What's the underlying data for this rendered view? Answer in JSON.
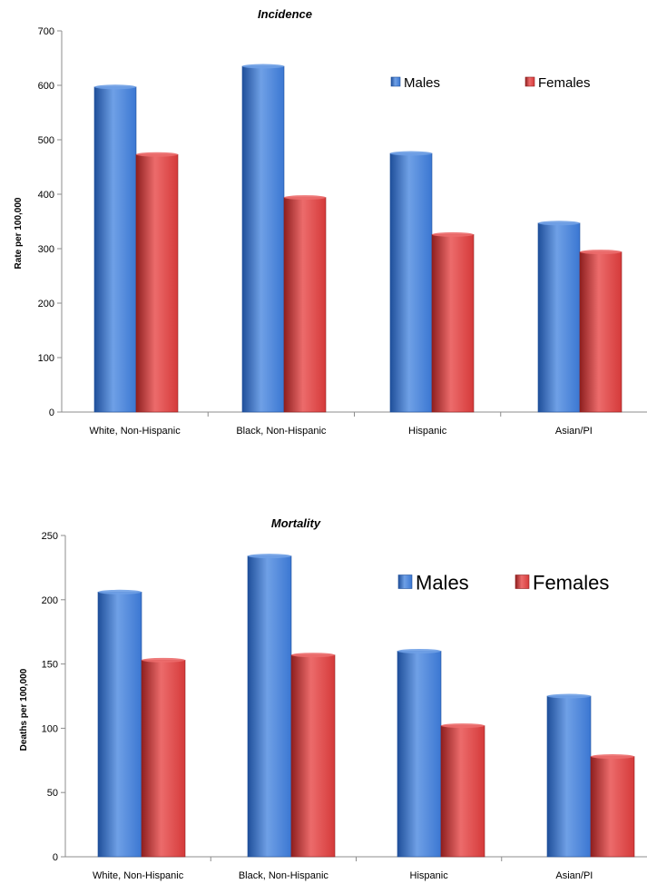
{
  "colors": {
    "males": "#3b77d2",
    "males_dark": "#1f4f9a",
    "males_light": "#6fa0e6",
    "females": "#d53a3a",
    "females_dark": "#8e1f1f",
    "females_light": "#ec6b6b"
  },
  "chart_data": [
    {
      "type": "bar",
      "title": "Incidence",
      "ylabel": "Rate per 100,000",
      "xlabel": "",
      "categories": [
        "White, Non-Hispanic",
        "Black, Non-Hispanic",
        "Hispanic",
        "Asian/PI"
      ],
      "series": [
        {
          "name": "Males",
          "values": [
            597,
            635,
            475,
            347
          ]
        },
        {
          "name": "Females",
          "values": [
            473,
            394,
            326,
            294
          ]
        }
      ],
      "ylim": [
        0,
        700
      ],
      "yticks": [
        0,
        100,
        200,
        300,
        400,
        500,
        600,
        700
      ],
      "grid": false,
      "legend": "top-right"
    },
    {
      "type": "bar",
      "title": "Mortality",
      "ylabel": "Deaths per 100,000",
      "xlabel": "",
      "categories": [
        "White, Non-Hispanic",
        "Black, Non-Hispanic",
        "Hispanic",
        "Asian/PI"
      ],
      "series": [
        {
          "name": "Males",
          "values": [
            206,
            234,
            160,
            125
          ]
        },
        {
          "name": "Females",
          "values": [
            153,
            157,
            102,
            78
          ]
        }
      ],
      "ylim": [
        0,
        250
      ],
      "yticks": [
        0,
        50,
        100,
        150,
        200,
        250
      ],
      "grid": false,
      "legend": "top-right"
    }
  ]
}
